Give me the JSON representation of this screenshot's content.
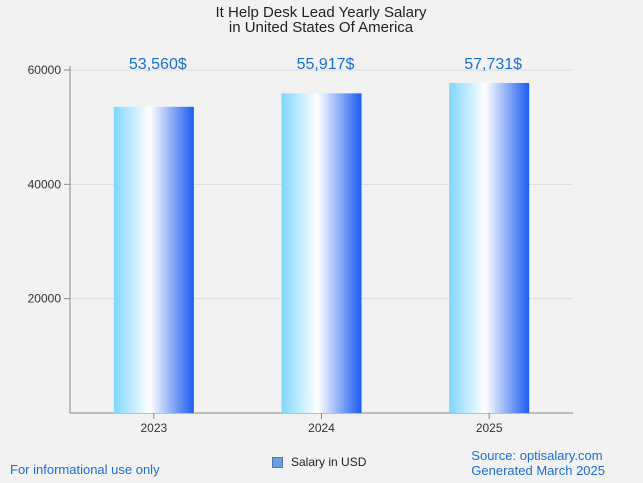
{
  "chart_data": {
    "type": "bar",
    "title": "It Help Desk Lead Yearly Salary",
    "subtitle": "in United States Of America",
    "categories": [
      "2023",
      "2024",
      "2025"
    ],
    "series": [
      {
        "name": "Salary in USD",
        "values": [
          53560,
          55917,
          57731
        ]
      }
    ],
    "data_labels": [
      "53,560$",
      "55,917$",
      "57,731$"
    ],
    "y_ticks": [
      "20000",
      "40000",
      "60000"
    ],
    "ylim": [
      0,
      60000
    ],
    "grid": true,
    "legend": "bottom-center",
    "colors": {
      "bar_light": "#ffffff",
      "bar_mid": "#7fd6ff",
      "bar_dark": "#1a5cf0",
      "label": "#1a6fd1"
    }
  },
  "footer": {
    "left": "For informational use only",
    "source": "Source: optisalary.com",
    "generated": "Generated March 2025"
  }
}
